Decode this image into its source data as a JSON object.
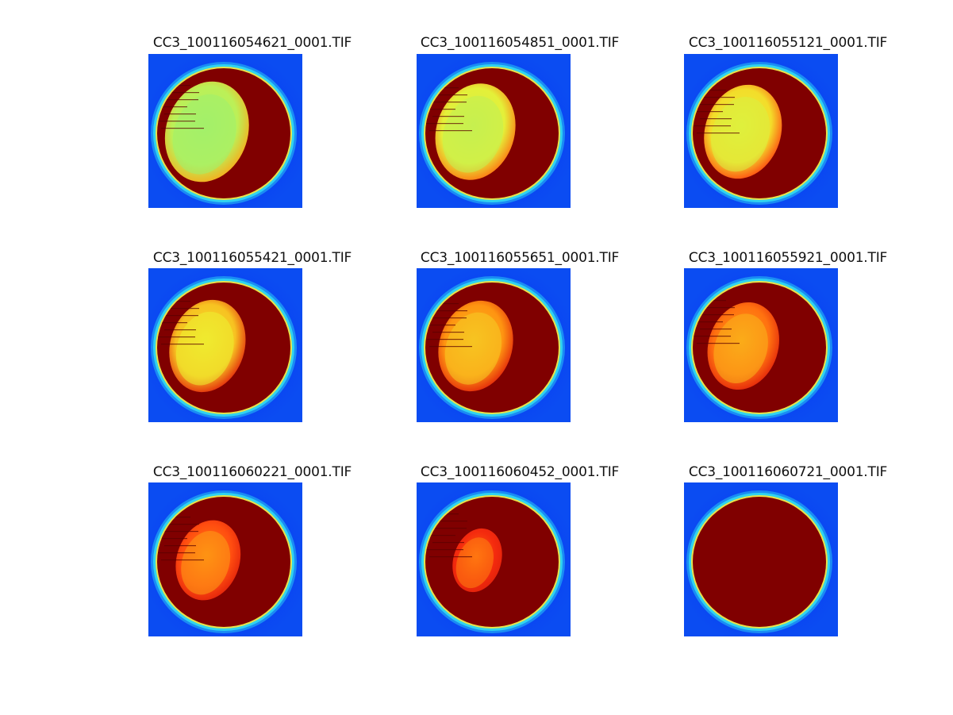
{
  "figure": {
    "panels": [
      {
        "title": "CC3_100116054621_0001.TIF",
        "dark_fraction": 0.3,
        "bright_level": 0.45
      },
      {
        "title": "CC3_100116054851_0001.TIF",
        "dark_fraction": 0.35,
        "bright_level": 0.55
      },
      {
        "title": "CC3_100116055121_0001.TIF",
        "dark_fraction": 0.38,
        "bright_level": 0.62
      },
      {
        "title": "CC3_100116055421_0001.TIF",
        "dark_fraction": 0.4,
        "bright_level": 0.68
      },
      {
        "title": "CC3_100116055651_0001.TIF",
        "dark_fraction": 0.42,
        "bright_level": 0.78
      },
      {
        "title": "CC3_100116055921_0001.TIF",
        "dark_fraction": 0.46,
        "bright_level": 0.84
      },
      {
        "title": "CC3_100116060221_0001.TIF",
        "dark_fraction": 0.55,
        "bright_level": 0.9
      },
      {
        "title": "CC3_100116060452_0001.TIF",
        "dark_fraction": 0.75,
        "bright_level": 0.96
      },
      {
        "title": "CC3_100116060721_0001.TIF",
        "dark_fraction": 1.0,
        "bright_level": 1.0
      }
    ]
  },
  "colors": {
    "background": "#0b4cf2",
    "ring_cyan": "#2fd3f0",
    "ring_yellow": "#e8e24a",
    "saturated": "#800000",
    "title_text": "#111111"
  },
  "colormap": "jet"
}
